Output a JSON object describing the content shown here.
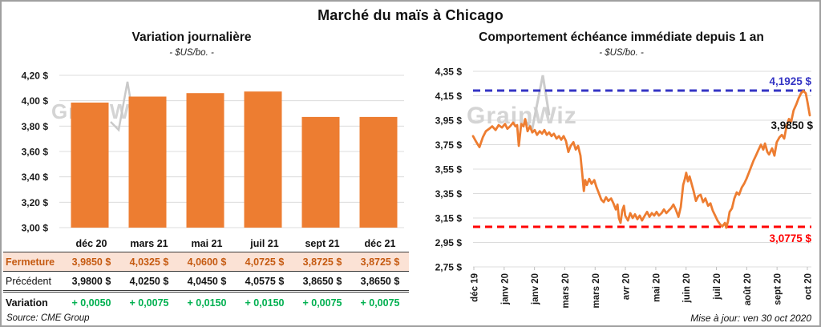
{
  "page": {
    "title": "Marché du maïs à Chicago",
    "source": "Source: CME Group",
    "updated": "Mise à jour: ven 30 oct 2020",
    "watermark": "GrainWiz"
  },
  "colors": {
    "orange": "#ED7D31",
    "blue": "#3434C4",
    "red": "#FF0000",
    "green": "#00B050",
    "rust": "#C55A11",
    "peach": "#FBE2D5",
    "grid": "#DCDCDC",
    "watermark": "#D4D4D4"
  },
  "left_chart": {
    "title": "Variation journalière",
    "subtitle": "- $US/bo. -",
    "y_tick_labels": [
      "4,20 $",
      "4,00 $",
      "3,80 $",
      "3,60 $",
      "3,40 $",
      "3,20 $",
      "3,00 $"
    ]
  },
  "right_chart": {
    "title": "Comportement échéance immédiate depuis 1 an",
    "subtitle": "- $US/bo. -",
    "y_tick_labels": [
      "4,35 $",
      "4,15 $",
      "3,95 $",
      "3,75 $",
      "3,55 $",
      "3,35 $",
      "3,15 $",
      "2,95 $",
      "2,75 $"
    ],
    "x_tick_labels": [
      "déc 19",
      "janv 20",
      "janv 20",
      "mars 20",
      "mars 20",
      "avr 20",
      "mai 20",
      "juin 20",
      "juil 20",
      "août 20",
      "sept 20",
      "oct 20"
    ],
    "upper_ref_label": "4,1925 $",
    "lower_ref_label": "3,0775 $",
    "last_label": "3,9850 $"
  },
  "table": {
    "headers": [
      "",
      "déc 20",
      "mars 21",
      "mai 21",
      "juil 21",
      "sept 21",
      "déc 21"
    ],
    "rows": [
      {
        "key": "fermeture",
        "label": "Fermeture",
        "values": [
          "3,9850 $",
          "4,0325 $",
          "4,0600 $",
          "4,0725 $",
          "3,8725 $",
          "3,8725 $"
        ]
      },
      {
        "key": "precedent",
        "label": "Précédent",
        "values": [
          "3,9800 $",
          "4,0250 $",
          "4,0450 $",
          "4,0575 $",
          "3,8650 $",
          "3,8650 $"
        ]
      },
      {
        "key": "variation",
        "label": "Variation",
        "values": [
          "+ 0,0050",
          "+ 0,0075",
          "+ 0,0150",
          "+ 0,0150",
          "+ 0,0075",
          "+ 0,0075"
        ]
      }
    ]
  },
  "chart_data": [
    {
      "type": "bar",
      "title": "Variation journalière",
      "subtitle": "- $US/bo. -",
      "categories": [
        "déc 20",
        "mars 21",
        "mai 21",
        "juil 21",
        "sept 21",
        "déc 21"
      ],
      "values": [
        3.985,
        4.0325,
        4.06,
        4.0725,
        3.8725,
        3.8725
      ],
      "previous_close": [
        3.98,
        4.025,
        4.045,
        4.0575,
        3.865,
        3.865
      ],
      "variation": [
        0.005,
        0.0075,
        0.015,
        0.015,
        0.0075,
        0.0075
      ],
      "ylim": [
        3.0,
        4.2
      ],
      "ytick_step": 0.2,
      "grid": true
    },
    {
      "type": "line",
      "title": "Comportement échéance immédiate depuis 1 an",
      "subtitle": "- $US/bo. -",
      "ylim": [
        2.75,
        4.35
      ],
      "ytick_step": 0.2,
      "grid": true,
      "x_range": [
        "déc 19",
        "oct 20"
      ],
      "ref_lines": [
        {
          "value": 4.1925,
          "label": "4,1925 $",
          "color_key": "blue",
          "style": "dashed",
          "role": "high"
        },
        {
          "value": 3.0775,
          "label": "3,0775 $",
          "color_key": "red",
          "style": "dashed",
          "role": "low"
        }
      ],
      "last_value": 3.985,
      "points": [
        [
          0,
          3.82
        ],
        [
          0.01,
          3.77
        ],
        [
          0.019,
          3.73
        ],
        [
          0.029,
          3.81
        ],
        [
          0.038,
          3.86
        ],
        [
          0.048,
          3.88
        ],
        [
          0.057,
          3.9
        ],
        [
          0.067,
          3.87
        ],
        [
          0.076,
          3.91
        ],
        [
          0.086,
          3.89
        ],
        [
          0.095,
          3.92
        ],
        [
          0.102,
          3.88
        ],
        [
          0.11,
          3.9
        ],
        [
          0.119,
          3.93
        ],
        [
          0.126,
          3.9
        ],
        [
          0.131,
          3.91
        ],
        [
          0.136,
          3.74
        ],
        [
          0.143,
          3.92
        ],
        [
          0.15,
          3.9
        ],
        [
          0.155,
          3.96
        ],
        [
          0.162,
          3.86
        ],
        [
          0.169,
          3.9
        ],
        [
          0.176,
          3.85
        ],
        [
          0.183,
          3.87
        ],
        [
          0.19,
          3.83
        ],
        [
          0.198,
          3.86
        ],
        [
          0.205,
          3.84
        ],
        [
          0.212,
          3.87
        ],
        [
          0.219,
          3.83
        ],
        [
          0.226,
          3.85
        ],
        [
          0.233,
          3.82
        ],
        [
          0.24,
          3.84
        ],
        [
          0.248,
          3.8
        ],
        [
          0.255,
          3.82
        ],
        [
          0.262,
          3.79
        ],
        [
          0.269,
          3.82
        ],
        [
          0.276,
          3.78
        ],
        [
          0.283,
          3.69
        ],
        [
          0.29,
          3.74
        ],
        [
          0.298,
          3.77
        ],
        [
          0.305,
          3.71
        ],
        [
          0.312,
          3.74
        ],
        [
          0.319,
          3.66
        ],
        [
          0.324,
          3.52
        ],
        [
          0.329,
          3.37
        ],
        [
          0.333,
          3.46
        ],
        [
          0.338,
          3.42
        ],
        [
          0.345,
          3.47
        ],
        [
          0.352,
          3.43
        ],
        [
          0.36,
          3.46
        ],
        [
          0.367,
          3.4
        ],
        [
          0.374,
          3.35
        ],
        [
          0.381,
          3.3
        ],
        [
          0.388,
          3.28
        ],
        [
          0.395,
          3.32
        ],
        [
          0.402,
          3.29
        ],
        [
          0.41,
          3.31
        ],
        [
          0.417,
          3.27
        ],
        [
          0.424,
          3.22
        ],
        [
          0.429,
          3.26
        ],
        [
          0.433,
          3.15
        ],
        [
          0.438,
          3.11
        ],
        [
          0.443,
          3.21
        ],
        [
          0.448,
          3.25
        ],
        [
          0.452,
          3.17
        ],
        [
          0.46,
          3.13
        ],
        [
          0.467,
          3.19
        ],
        [
          0.474,
          3.15
        ],
        [
          0.481,
          3.18
        ],
        [
          0.488,
          3.14
        ],
        [
          0.495,
          3.17
        ],
        [
          0.502,
          3.13
        ],
        [
          0.51,
          3.17
        ],
        [
          0.517,
          3.2
        ],
        [
          0.524,
          3.16
        ],
        [
          0.531,
          3.19
        ],
        [
          0.538,
          3.17
        ],
        [
          0.545,
          3.2
        ],
        [
          0.552,
          3.17
        ],
        [
          0.56,
          3.19
        ],
        [
          0.567,
          3.22
        ],
        [
          0.574,
          3.19
        ],
        [
          0.581,
          3.21
        ],
        [
          0.588,
          3.23
        ],
        [
          0.595,
          3.26
        ],
        [
          0.602,
          3.22
        ],
        [
          0.61,
          3.16
        ],
        [
          0.617,
          3.24
        ],
        [
          0.624,
          3.42
        ],
        [
          0.629,
          3.47
        ],
        [
          0.633,
          3.52
        ],
        [
          0.638,
          3.45
        ],
        [
          0.643,
          3.49
        ],
        [
          0.648,
          3.44
        ],
        [
          0.655,
          3.37
        ],
        [
          0.662,
          3.29
        ],
        [
          0.669,
          3.33
        ],
        [
          0.676,
          3.34
        ],
        [
          0.683,
          3.28
        ],
        [
          0.69,
          3.31
        ],
        [
          0.698,
          3.25
        ],
        [
          0.705,
          3.27
        ],
        [
          0.712,
          3.21
        ],
        [
          0.719,
          3.17
        ],
        [
          0.726,
          3.13
        ],
        [
          0.733,
          3.1
        ],
        [
          0.74,
          3.08
        ],
        [
          0.748,
          3.11
        ],
        [
          0.752,
          3.07
        ],
        [
          0.757,
          3.12
        ],
        [
          0.762,
          3.2
        ],
        [
          0.769,
          3.23
        ],
        [
          0.776,
          3.31
        ],
        [
          0.783,
          3.36
        ],
        [
          0.79,
          3.34
        ],
        [
          0.798,
          3.4
        ],
        [
          0.805,
          3.43
        ],
        [
          0.812,
          3.47
        ],
        [
          0.819,
          3.52
        ],
        [
          0.826,
          3.57
        ],
        [
          0.833,
          3.62
        ],
        [
          0.84,
          3.66
        ],
        [
          0.848,
          3.71
        ],
        [
          0.855,
          3.75
        ],
        [
          0.862,
          3.71
        ],
        [
          0.867,
          3.76
        ],
        [
          0.874,
          3.69
        ],
        [
          0.879,
          3.67
        ],
        [
          0.888,
          3.72
        ],
        [
          0.895,
          3.66
        ],
        [
          0.902,
          3.77
        ],
        [
          0.91,
          3.81
        ],
        [
          0.917,
          3.83
        ],
        [
          0.924,
          3.8
        ],
        [
          0.931,
          3.9
        ],
        [
          0.938,
          3.96
        ],
        [
          0.945,
          3.94
        ],
        [
          0.952,
          4.03
        ],
        [
          0.96,
          4.08
        ],
        [
          0.967,
          4.13
        ],
        [
          0.974,
          4.17
        ],
        [
          0.981,
          4.19
        ],
        [
          0.988,
          4.17
        ],
        [
          0.993,
          4.1
        ],
        [
          1,
          3.99
        ]
      ]
    }
  ]
}
